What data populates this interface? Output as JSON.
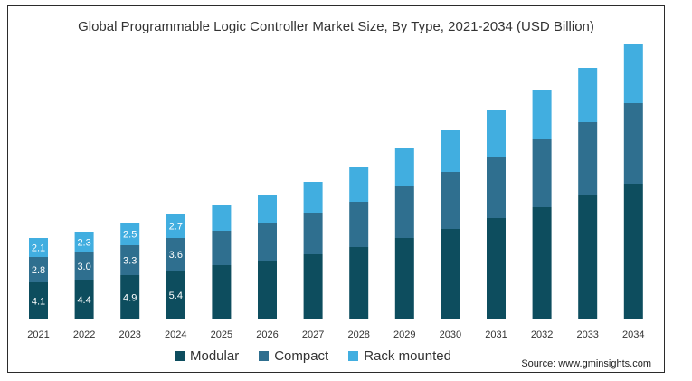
{
  "chart_data": {
    "type": "bar",
    "stacked": true,
    "title": "Global Programmable Logic Controller Market Size, By Type, 2021-2034 (USD Billion)",
    "categories": [
      "2021",
      "2022",
      "2023",
      "2024",
      "2025",
      "2026",
      "2027",
      "2028",
      "2029",
      "2030",
      "2031",
      "2032",
      "2033",
      "2034"
    ],
    "series": [
      {
        "name": "Modular",
        "color": "#0d4d5e",
        "values": [
          4.1,
          4.4,
          4.9,
          5.4,
          6.0,
          6.5,
          7.2,
          8.0,
          9.0,
          10.0,
          11.2,
          12.4,
          13.7,
          15.0
        ]
      },
      {
        "name": "Compact",
        "color": "#2f6f8f",
        "values": [
          2.8,
          3.0,
          3.3,
          3.6,
          3.8,
          4.2,
          4.6,
          5.0,
          5.7,
          6.3,
          6.8,
          7.5,
          8.1,
          8.9
        ]
      },
      {
        "name": "Rack mounted",
        "color": "#41aee0",
        "values": [
          2.1,
          2.3,
          2.5,
          2.7,
          2.9,
          3.1,
          3.4,
          3.8,
          4.2,
          4.6,
          5.1,
          5.5,
          6.0,
          6.5
        ]
      }
    ],
    "data_labels": {
      "Modular": [
        "4.1",
        "4.4",
        "4.9",
        "5.4"
      ],
      "Compact": [
        "2.8",
        "3.0",
        "3.3",
        "3.6"
      ],
      "Rack mounted": [
        "2.1",
        "2.3",
        "2.5",
        "2.7"
      ]
    },
    "ylim": [
      0,
      31
    ],
    "grid": false,
    "legend_position": "bottom"
  },
  "legend": [
    {
      "label": "Modular",
      "color": "#0d4d5e"
    },
    {
      "label": "Compact",
      "color": "#2f6f8f"
    },
    {
      "label": "Rack mounted",
      "color": "#41aee0"
    }
  ],
  "source_text": "Source: www.gminsights.com"
}
